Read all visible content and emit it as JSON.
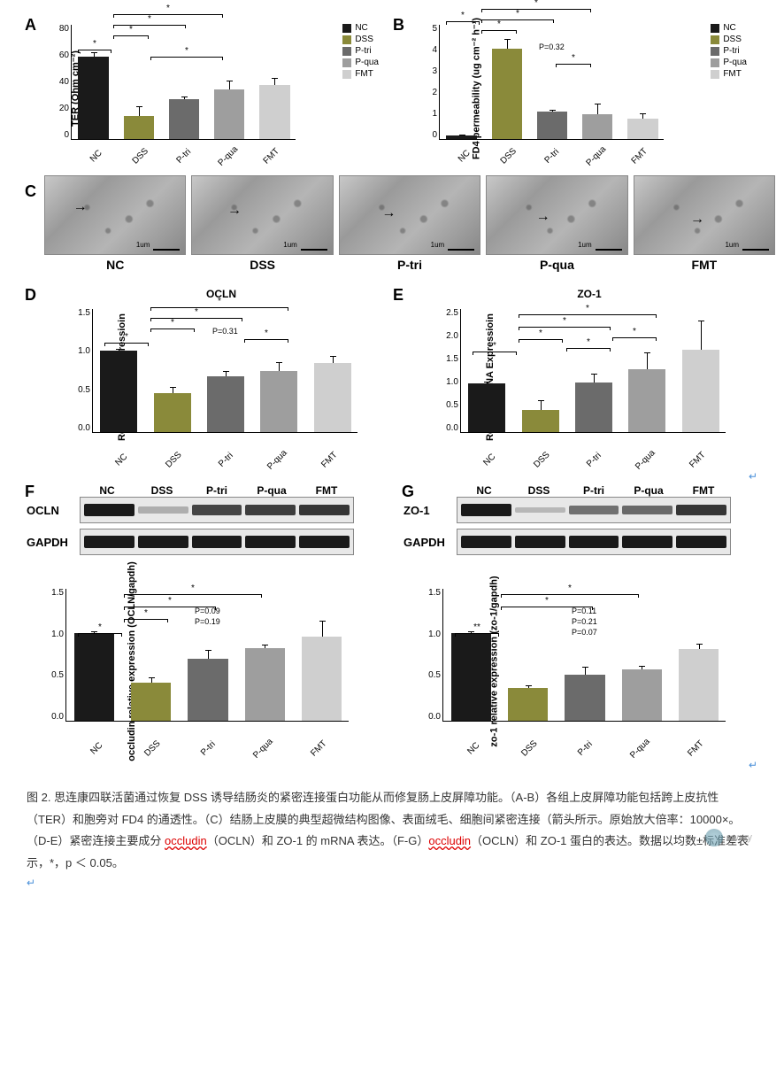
{
  "colors": {
    "NC": "#1a1a1a",
    "DSS": "#8a8a3a",
    "P-tri": "#6b6b6b",
    "P-qua": "#9e9e9e",
    "FMT": "#cfcfcf",
    "axis": "#000000",
    "background": "#ffffff"
  },
  "groups": [
    "NC",
    "DSS",
    "P-tri",
    "P-qua",
    "FMT"
  ],
  "legend_labels": [
    "NC",
    "DSS",
    "P-tri",
    "P-qua",
    "FMT"
  ],
  "panelA": {
    "label": "A",
    "ytitle": "TER (Ohm cm⁻²)",
    "ylim": [
      0,
      80
    ],
    "ytick_step": 20,
    "values": [
      58,
      16,
      28,
      35,
      38
    ],
    "errors": [
      3,
      7,
      2,
      6,
      5
    ],
    "sig": [
      "*",
      "*",
      "*",
      "*",
      "*"
    ],
    "type": "bar"
  },
  "panelB": {
    "label": "B",
    "ytitle": "FD4 permeability (ug cm⁻² h⁻¹)",
    "ylim": [
      0,
      5
    ],
    "ytick_step": 1,
    "values": [
      0.15,
      4.0,
      1.2,
      1.1,
      0.9
    ],
    "errors": [
      0.05,
      0.4,
      0.1,
      0.45,
      0.25
    ],
    "pvals": {
      "P-tri_P-qua": "P=0.32"
    },
    "type": "bar"
  },
  "panelC": {
    "label": "C",
    "images": [
      "NC",
      "DSS",
      "P-tri",
      "P-qua",
      "FMT"
    ],
    "scale_label": "1um",
    "magnification": "10000×",
    "note": "arrows indicate tight junctions"
  },
  "panelD": {
    "label": "D",
    "title": "OCLN",
    "ytitle": "Relative mRNA Expressioin",
    "ylim": [
      0,
      1.5
    ],
    "ytick_step": 0.5,
    "values": [
      1.0,
      0.48,
      0.68,
      0.75,
      0.85
    ],
    "errors": [
      0.02,
      0.07,
      0.07,
      0.11,
      0.09
    ],
    "pvals": {
      "P-tri_P-qua": "P=0.31"
    },
    "type": "bar"
  },
  "panelE": {
    "label": "E",
    "title": "ZO-1",
    "ytitle": "Relative mRNA Expressioin",
    "ylim": [
      0,
      2.5
    ],
    "ytick_step": 0.5,
    "values": [
      1.0,
      0.45,
      1.02,
      1.28,
      1.68
    ],
    "errors": [
      0.03,
      0.2,
      0.18,
      0.35,
      0.6
    ],
    "type": "bar"
  },
  "panelF": {
    "label": "F",
    "blots": [
      {
        "name": "OCLN",
        "intensities": [
          1.0,
          0.15,
          0.75,
          0.8,
          0.85
        ]
      },
      {
        "name": "GAPDH",
        "intensities": [
          1.0,
          1.0,
          1.0,
          1.0,
          1.0
        ]
      }
    ],
    "chart": {
      "ytitle": "occludin relative expression\n(OCLN/gapdh)",
      "ylim": [
        0,
        1.5
      ],
      "ytick_step": 0.5,
      "values": [
        1.0,
        0.44,
        0.71,
        0.83,
        0.96
      ],
      "errors": [
        0.02,
        0.06,
        0.1,
        0.04,
        0.19
      ],
      "pvals": {
        "P-tri_P-qua": "P=0.09",
        "P-qua_FMT": "P=0.19"
      },
      "type": "bar"
    }
  },
  "panelG": {
    "label": "G",
    "blots": [
      {
        "name": "ZO-1",
        "intensities": [
          1.0,
          0.1,
          0.5,
          0.55,
          0.85
        ]
      },
      {
        "name": "GAPDH",
        "intensities": [
          1.0,
          1.0,
          1.0,
          1.0,
          1.0
        ]
      }
    ],
    "chart": {
      "ytitle": "zo-1 relative expression\n(zo-1/gapdh)",
      "ylim": [
        0,
        1.5
      ],
      "ytick_step": 0.5,
      "values": [
        1.0,
        0.38,
        0.53,
        0.59,
        0.82
      ],
      "errors": [
        0.02,
        0.03,
        0.09,
        0.04,
        0.06
      ],
      "pvals": {
        "DSS_P-tri": "P=0.11",
        "P-tri_P-qua": "P=0.21",
        "P-qua_FMT": "P=0.07"
      },
      "sig_dbl": "**",
      "type": "bar"
    }
  },
  "caption": {
    "fig_num": "图 2.",
    "text1": "思连康四联活菌通过恢复 DSS 诱导结肠炎的紧密连接蛋白功能从而修复肠上皮屏障功能。（A-B）各组上皮屏障功能包括跨上皮抗性（TER）和胞旁对 FD4 的通透性。（C）结肠上皮膜的典型超微结构图像、表面绒毛、细胞间紧密连接（箭头所示。原始放大倍率：10000×。（D-E）紧密连接主要成分 ",
    "occludin1": "occludin",
    "text2": "（OCLN）和 ZO-1 的 mRNA 表达。（F-G）",
    "occludin2": "occludin",
    "text3": "（OCLN）和 ZO-1 蛋白的表达。数据以均数±标准差表示，*，p ＜ 0.05。"
  },
  "watermark": "awary",
  "chart_style": {
    "bar_width": 0.8,
    "font_family": "Arial",
    "axis_fontsize": 11,
    "tick_fontsize": 10,
    "panel_label_fontsize": 18,
    "grid": false
  }
}
